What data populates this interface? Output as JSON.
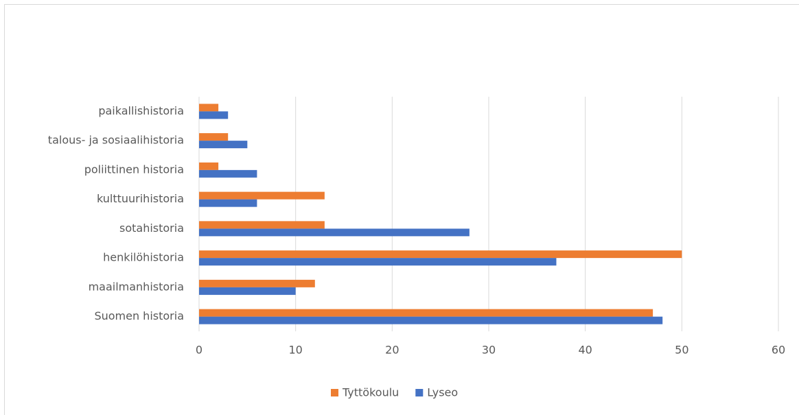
{
  "chart_data": {
    "type": "hbar",
    "categories": [
      "Suomen historia",
      "maailmanhistoria",
      "henkilöhistoria",
      "sotahistoria",
      "kulttuurihistoria",
      "poliittinen historia",
      "talous- ja sosiaalihistoria",
      "paikallishistoria"
    ],
    "series": [
      {
        "name": "Tyttökoulu",
        "color": "#ed7d31",
        "values": [
          47,
          12,
          50,
          13,
          13,
          2,
          3,
          2
        ]
      },
      {
        "name": "Lyseo",
        "color": "#4472c4",
        "values": [
          48,
          10,
          37,
          28,
          6,
          6,
          5,
          3
        ]
      }
    ],
    "xlim": [
      0,
      60
    ],
    "xticks": [
      0,
      10,
      20,
      30,
      40,
      50,
      60
    ],
    "grid": true,
    "legend": "bottom"
  }
}
